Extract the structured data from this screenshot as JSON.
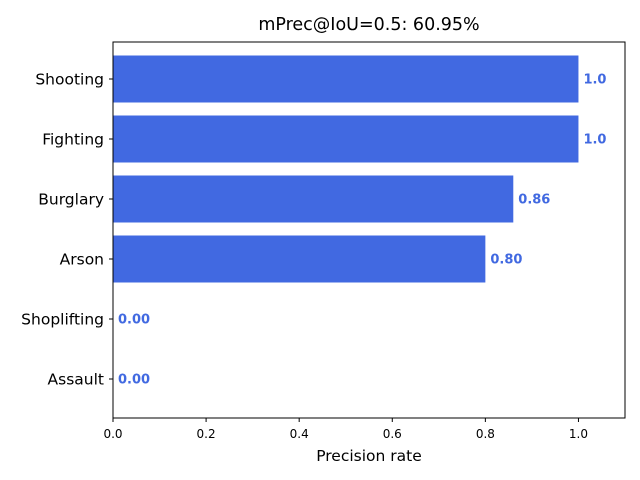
{
  "chart_data": {
    "type": "bar",
    "orientation": "horizontal",
    "title": "mPrec@IoU=0.5: 60.95%",
    "xlabel": "Precision rate",
    "ylabel": "",
    "categories": [
      "Shooting",
      "Fighting",
      "Burglary",
      "Arson",
      "Shoplifting",
      "Assault"
    ],
    "values": [
      1.0,
      1.0,
      0.86,
      0.8,
      0.0,
      0.0
    ],
    "value_labels": [
      "1.0",
      "1.0",
      "0.86",
      "0.80",
      "0.00",
      "0.00"
    ],
    "xlim": [
      0,
      1.1
    ],
    "xticks": [
      0.0,
      0.2,
      0.4,
      0.6,
      0.8,
      1.0
    ],
    "xtick_labels": [
      "0.0",
      "0.2",
      "0.4",
      "0.6",
      "0.8",
      "1.0"
    ],
    "grid": false,
    "bar_color": "#4169e1",
    "label_color": "#4169e1"
  }
}
